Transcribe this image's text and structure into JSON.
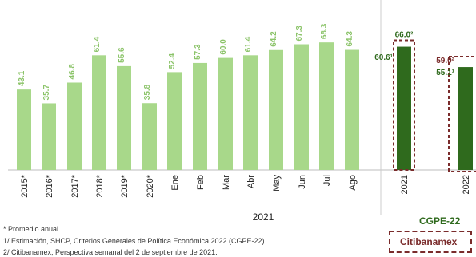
{
  "chart_data": {
    "type": "bar",
    "categories": [
      "2015*",
      "2016*",
      "2017*",
      "2018*",
      "2019*",
      "2020*",
      "Ene",
      "Feb",
      "Mar",
      "Abr",
      "May",
      "Jun",
      "Jul",
      "Ago",
      "2021",
      "2022"
    ],
    "values": [
      43.1,
      35.7,
      46.8,
      61.4,
      55.6,
      35.8,
      52.4,
      57.3,
      60.0,
      61.4,
      64.2,
      67.3,
      68.3,
      64.3,
      66.0,
      55.1
    ],
    "value_labels": [
      "43.1",
      "35.7",
      "46.8",
      "61.4",
      "55.6",
      "35.8",
      "52.4",
      "57.3",
      "60.0",
      "61.4",
      "64.2",
      "67.3",
      "68.3",
      "64.3",
      "66.0²",
      "55.1¹"
    ],
    "extra_labels": [
      {
        "category": "2021",
        "text": "60.6¹",
        "value": 60.6
      },
      {
        "category": "2022",
        "text": "59.0²",
        "value": 59.0
      }
    ],
    "group_label": "2021",
    "forecast_group_label": "CGPE-22",
    "legend_label": "Citibanamex",
    "ylim": [
      0,
      80
    ],
    "colors": {
      "history": "#a8d88a",
      "forecast": "#2f6a1d",
      "dashed_box": "#7a2b2b",
      "label_history": "#8cc46a",
      "label_forecast": "#2f6a1d"
    }
  },
  "footnotes": [
    "* Promedio anual.",
    "1/ Estimación, SHCP, Criterios Generales de Política Económica 2022 (CGPE-22).",
    "2/ Citibanamex, Perspectiva semanal del 2 de septiembre de 2021."
  ]
}
